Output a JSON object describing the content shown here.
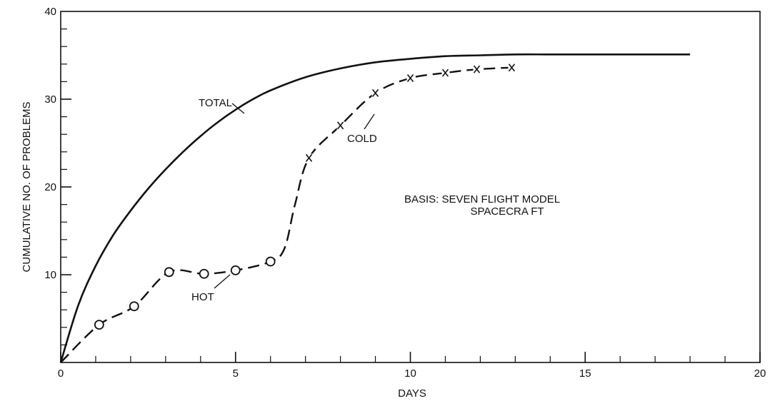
{
  "chart_data": {
    "type": "line",
    "xlabel": "DAYS",
    "ylabel": "CUMULATIVE NO. OF PROBLEMS",
    "xlim": [
      0,
      20
    ],
    "ylim": [
      0,
      40
    ],
    "x_ticks": [
      0,
      5,
      10,
      15,
      20
    ],
    "x_tick_labels": [
      "0",
      "5",
      "10",
      "15",
      "20"
    ],
    "y_ticks": [
      10,
      20,
      30,
      40
    ],
    "y_tick_labels": [
      "10",
      "20",
      "30",
      "40"
    ],
    "grid": false,
    "series": [
      {
        "name": "TOTAL",
        "style": "solid",
        "x": [
          0,
          0.5,
          1,
          1.5,
          2,
          2.5,
          3,
          3.5,
          4,
          4.5,
          5,
          5.5,
          6,
          7,
          8,
          9,
          10,
          11,
          12,
          13,
          14,
          15,
          16,
          17,
          18
        ],
        "values": [
          0,
          6.5,
          11,
          14.5,
          17.3,
          19.8,
          22,
          24,
          25.8,
          27.4,
          28.8,
          30,
          31,
          32.5,
          33.5,
          34.2,
          34.6,
          34.9,
          35,
          35.1,
          35.1,
          35.1,
          35.1,
          35.1,
          35.1
        ]
      },
      {
        "name": "HOT",
        "style": "dashed",
        "marker": "circle",
        "x": [
          1.1,
          2.1,
          3.1,
          4.1,
          5.0,
          6.0
        ],
        "values": [
          4.3,
          6.4,
          10.3,
          10.1,
          10.5,
          11.5
        ]
      },
      {
        "name": "COLD",
        "style": "dashed",
        "marker": "x",
        "x": [
          7.1,
          8.0,
          9.0,
          10.0,
          11.0,
          11.9,
          12.9
        ],
        "values": [
          23.3,
          27.0,
          30.7,
          32.4,
          33.0,
          33.4,
          33.6
        ]
      }
    ],
    "annotations": [
      {
        "text": "TOTAL"
      },
      {
        "text": "COLD"
      },
      {
        "text": "HOT"
      },
      {
        "text": "BASIS: SEVEN FLIGHT MODEL"
      },
      {
        "text": "SPACECRA FT"
      }
    ]
  }
}
